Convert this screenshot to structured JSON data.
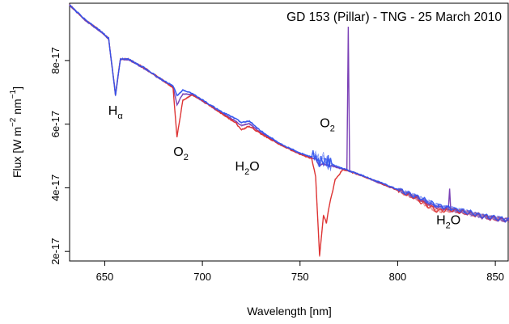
{
  "chart_data": {
    "type": "line",
    "title": "GD 153 (Pillar) - TNG - 25 March 2010",
    "xlabel": "Wavelength [nm]",
    "ylabel_parts": {
      "prefix": "Flux [W m",
      "exp1": "−2",
      "mid": " nm",
      "exp2": "−1",
      "suffix": "]"
    },
    "xlim": [
      632,
      857
    ],
    "ylim": [
      1.7e-17,
      9.8e-17
    ],
    "x_ticks": [
      650,
      700,
      750,
      800,
      850
    ],
    "x_tick_labels": [
      "650",
      "700",
      "750",
      "800",
      "850"
    ],
    "y_ticks": [
      2e-17,
      4e-17,
      6e-17,
      8e-17
    ],
    "y_tick_labels": [
      "2e-17",
      "4e-17",
      "6e-17",
      "8e-17"
    ],
    "series": [
      {
        "color": "#dd3333",
        "points": [
          [
            632,
            9.75e-17
          ],
          [
            640,
            9.28e-17
          ],
          [
            648,
            8.92e-17
          ],
          [
            652,
            8.7e-17
          ],
          [
            655.5,
            6.9e-17
          ],
          [
            658,
            8.05e-17
          ],
          [
            662,
            8.05e-17
          ],
          [
            670,
            7.78e-17
          ],
          [
            680,
            7.37e-17
          ],
          [
            685,
            7.12e-17
          ],
          [
            687,
            5.6e-17
          ],
          [
            690,
            6.75e-17
          ],
          [
            695,
            6.92e-17
          ],
          [
            700,
            6.74e-17
          ],
          [
            710,
            6.33e-17
          ],
          [
            717,
            6.04e-17
          ],
          [
            720,
            5.82e-17
          ],
          [
            724,
            5.94e-17
          ],
          [
            730,
            5.7e-17
          ],
          [
            740,
            5.34e-17
          ],
          [
            750,
            5.06e-17
          ],
          [
            756,
            4.91e-17
          ],
          [
            758,
            4.35e-17
          ],
          [
            760,
            1.85e-17
          ],
          [
            762,
            3.15e-17
          ],
          [
            763.5,
            2.9e-17
          ],
          [
            765,
            3.45e-17
          ],
          [
            768,
            4.25e-17
          ],
          [
            772,
            4.58e-17
          ],
          [
            780,
            4.42e-17
          ],
          [
            790,
            4.18e-17
          ],
          [
            800,
            3.93e-17
          ],
          [
            810,
            3.65e-17
          ],
          [
            815,
            3.45e-17
          ],
          [
            820,
            3.28e-17
          ],
          [
            828,
            3.3e-17
          ],
          [
            835,
            3.22e-17
          ],
          [
            845,
            3.09e-17
          ],
          [
            857,
            2.98e-17
          ]
        ]
      },
      {
        "color": "#3355ee",
        "points": [
          [
            632,
            9.75e-17
          ],
          [
            640,
            9.28e-17
          ],
          [
            648,
            8.92e-17
          ],
          [
            652,
            8.7e-17
          ],
          [
            655.5,
            6.9e-17
          ],
          [
            658,
            8.05e-17
          ],
          [
            662,
            8.05e-17
          ],
          [
            670,
            7.78e-17
          ],
          [
            680,
            7.37e-17
          ],
          [
            685,
            7.2e-17
          ],
          [
            687,
            6.9e-17
          ],
          [
            690,
            7.08e-17
          ],
          [
            695,
            6.95e-17
          ],
          [
            700,
            6.76e-17
          ],
          [
            710,
            6.38e-17
          ],
          [
            717,
            6.18e-17
          ],
          [
            720,
            6.05e-17
          ],
          [
            724,
            6.1e-17
          ],
          [
            730,
            5.78e-17
          ],
          [
            740,
            5.38e-17
          ],
          [
            750,
            5.09e-17
          ],
          [
            756,
            4.96e-17
          ],
          [
            758,
            5.05e-17
          ],
          [
            760,
            4.78e-17
          ],
          [
            762,
            4.92e-17
          ],
          [
            765,
            4.78e-17
          ],
          [
            768,
            4.7e-17
          ],
          [
            772,
            4.6e-17
          ],
          [
            780,
            4.43e-17
          ],
          [
            790,
            4.19e-17
          ],
          [
            800,
            3.95e-17
          ],
          [
            810,
            3.72e-17
          ],
          [
            815,
            3.58e-17
          ],
          [
            820,
            3.45e-17
          ],
          [
            828,
            3.35e-17
          ],
          [
            835,
            3.25e-17
          ],
          [
            845,
            3.1e-17
          ],
          [
            857,
            2.99e-17
          ]
        ]
      },
      {
        "color": "#7a3fb5",
        "points": [
          [
            632,
            9.73e-17
          ],
          [
            640,
            9.26e-17
          ],
          [
            648,
            8.9e-17
          ],
          [
            652,
            8.68e-17
          ],
          [
            655.5,
            6.95e-17
          ],
          [
            658,
            8.03e-17
          ],
          [
            662,
            8.03e-17
          ],
          [
            670,
            7.76e-17
          ],
          [
            680,
            7.35e-17
          ],
          [
            685,
            7.17e-17
          ],
          [
            687,
            6.6e-17
          ],
          [
            690,
            6.95e-17
          ],
          [
            695,
            6.92e-17
          ],
          [
            700,
            6.73e-17
          ],
          [
            710,
            6.34e-17
          ],
          [
            717,
            6.1e-17
          ],
          [
            720,
            5.95e-17
          ],
          [
            724,
            6.02e-17
          ],
          [
            730,
            5.73e-17
          ],
          [
            740,
            5.35e-17
          ],
          [
            750,
            5.07e-17
          ],
          [
            756,
            4.93e-17
          ],
          [
            758,
            4.9e-17
          ],
          [
            760,
            4.7e-17
          ],
          [
            762,
            4.75e-17
          ],
          [
            765,
            4.7e-17
          ],
          [
            768,
            4.65e-17
          ],
          [
            772,
            4.58e-17
          ],
          [
            774,
            4.55e-17
          ],
          [
            774.7,
            9.05e-17
          ],
          [
            775.4,
            4.53e-17
          ],
          [
            780,
            4.42e-17
          ],
          [
            790,
            4.17e-17
          ],
          [
            800,
            3.93e-17
          ],
          [
            810,
            3.68e-17
          ],
          [
            815,
            3.52e-17
          ],
          [
            820,
            3.4e-17
          ],
          [
            826,
            3.32e-17
          ],
          [
            826.6,
            3.95e-17
          ],
          [
            827.2,
            3.3e-17
          ],
          [
            835,
            3.22e-17
          ],
          [
            845,
            3.08e-17
          ],
          [
            857,
            2.97e-17
          ]
        ]
      }
    ],
    "annotations": [
      {
        "name": "annotation-h-alpha",
        "base": "H",
        "sub": "α",
        "x": 655.5,
        "y": 6.3e-17
      },
      {
        "name": "annotation-o2-687",
        "base": "O",
        "sub": "2",
        "x": 689,
        "y": 5e-17
      },
      {
        "name": "annotation-h2o-720",
        "base": "H",
        "sub": "2",
        "tail": "O",
        "x": 723,
        "y": 4.55e-17
      },
      {
        "name": "annotation-o2-763",
        "base": "O",
        "sub": "2",
        "x": 764,
        "y": 5.9e-17
      },
      {
        "name": "annotation-h2o-828",
        "base": "H",
        "sub": "2",
        "tail": "O",
        "x": 826,
        "y": 2.85e-17
      }
    ]
  }
}
